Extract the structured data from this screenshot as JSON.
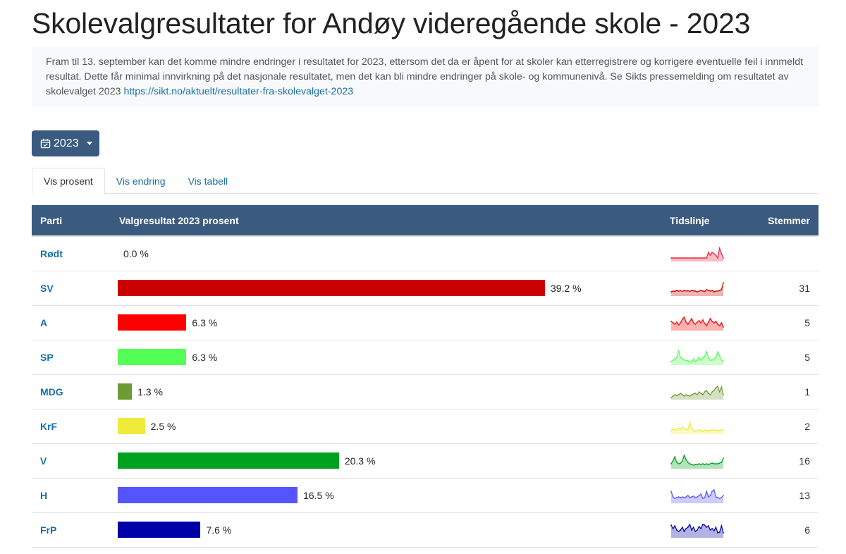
{
  "title": "Skolevalgresultater for Andøy videregående skole - 2023",
  "notice": {
    "text": "Fram til 13. september kan det komme mindre endringer i resultatet for 2023, ettersom det da er åpent for at skoler kan etterregistrere og korrigere eventuelle feil i innmeldt resultat. Dette får minimal innvirkning på det nasjonale resultatet, men det kan bli mindre endringer på skole- og kommunenivå. Se Sikts pressemelding om resultatet av skolevalget 2023 ",
    "link": "https://sikt.no/aktuelt/resultater-fra-skolevalget-2023"
  },
  "year_selector": {
    "label": "2023",
    "icon": "calendar-check-icon"
  },
  "tabs": [
    {
      "label": "Vis prosent",
      "active": true
    },
    {
      "label": "Vis endring",
      "active": false
    },
    {
      "label": "Vis tabell",
      "active": false
    }
  ],
  "table": {
    "headers": {
      "parti": "Parti",
      "result": "Valgresultat 2023 prosent",
      "timeline": "Tidslinje",
      "votes": "Stemmer"
    },
    "max_percent": 39.2,
    "rows": [
      {
        "party": "Rødt",
        "percent": 0.0,
        "label": "0.0 %",
        "color": "#e8253f",
        "votes": "",
        "trend": [
          0.2,
          0.2,
          0.2,
          0.2,
          0.2,
          0.2,
          0.2,
          0.2,
          0.2,
          0.2,
          0.2,
          0.2,
          0.2,
          0.2,
          0.2,
          0.2,
          0.2,
          0.2,
          0.2,
          0.2,
          0.6,
          0.4,
          0.6,
          0.5,
          0.4,
          0.2,
          0.9,
          0.5,
          0.2
        ]
      },
      {
        "party": "SV",
        "percent": 39.2,
        "label": "39.2 %",
        "color": "#cc0000",
        "votes": "31",
        "trend": [
          0.25,
          0.3,
          0.28,
          0.35,
          0.3,
          0.33,
          0.28,
          0.35,
          0.3,
          0.33,
          0.28,
          0.35,
          0.32,
          0.3,
          0.25,
          0.3,
          0.35,
          0.3,
          0.28,
          0.4,
          0.35,
          0.3,
          0.35,
          0.25,
          0.3,
          0.3,
          0.35,
          0.4,
          0.9
        ]
      },
      {
        "party": "A",
        "percent": 6.3,
        "label": "6.3 %",
        "color": "#ff0000",
        "votes": "5",
        "trend": [
          0.6,
          0.5,
          0.4,
          0.55,
          0.35,
          0.5,
          0.75,
          0.9,
          0.55,
          0.4,
          0.6,
          0.8,
          0.5,
          0.4,
          0.55,
          0.65,
          0.5,
          0.7,
          0.45,
          0.3,
          0.55,
          0.8,
          0.6,
          0.5,
          0.6,
          0.4,
          0.3,
          0.5,
          0.2
        ]
      },
      {
        "party": "SP",
        "percent": 6.3,
        "label": "6.3 %",
        "color": "#55ff55",
        "votes": "5",
        "trend": [
          0.2,
          0.3,
          0.4,
          0.5,
          0.95,
          0.5,
          0.4,
          0.3,
          0.3,
          0.25,
          0.2,
          0.15,
          0.4,
          0.2,
          0.3,
          0.5,
          0.3,
          0.5,
          0.55,
          0.9,
          0.5,
          0.3,
          0.3,
          0.4,
          0.5,
          0.9,
          0.6,
          0.3,
          0.2
        ]
      },
      {
        "party": "MDG",
        "percent": 1.3,
        "label": "1.3 %",
        "color": "#6d9b36",
        "votes": "1",
        "trend": [
          0.1,
          0.2,
          0.3,
          0.25,
          0.3,
          0.4,
          0.3,
          0.2,
          0.3,
          0.25,
          0.2,
          0.3,
          0.35,
          0.4,
          0.3,
          0.5,
          0.4,
          0.3,
          0.5,
          0.6,
          0.4,
          0.3,
          0.5,
          0.6,
          0.8,
          0.9,
          0.5,
          0.85,
          0.3
        ]
      },
      {
        "party": "KrF",
        "percent": 2.5,
        "label": "2.5 %",
        "color": "#f0ea3a",
        "votes": "2",
        "trend": [
          0.2,
          0.3,
          0.25,
          0.3,
          0.35,
          0.3,
          0.45,
          0.3,
          0.3,
          0.25,
          0.8,
          0.4,
          0.2,
          0.15,
          0.2,
          0.25,
          0.2,
          0.15,
          0.25,
          0.2,
          0.2,
          0.2,
          0.25,
          0.25,
          0.2,
          0.25,
          0.2,
          0.25,
          0.25
        ]
      },
      {
        "party": "V",
        "percent": 20.3,
        "label": "20.3 %",
        "color": "#00a020",
        "votes": "16",
        "trend": [
          0.3,
          0.5,
          0.8,
          0.4,
          0.3,
          0.35,
          0.5,
          0.9,
          0.6,
          0.4,
          0.3,
          0.25,
          0.2,
          0.25,
          0.25,
          0.3,
          0.25,
          0.3,
          0.25,
          0.3,
          0.25,
          0.3,
          0.35,
          0.3,
          0.3,
          0.3,
          0.35,
          0.4,
          0.7
        ]
      },
      {
        "party": "H",
        "percent": 16.5,
        "label": "16.5 %",
        "color": "#5555ff",
        "votes": "13",
        "trend": [
          0.8,
          0.4,
          0.3,
          0.35,
          0.4,
          0.35,
          0.4,
          0.35,
          0.4,
          0.5,
          0.35,
          0.4,
          0.45,
          0.35,
          0.4,
          0.5,
          0.6,
          0.3,
          0.35,
          0.8,
          0.4,
          0.5,
          0.8,
          0.9,
          0.4,
          0.35,
          0.3,
          0.35,
          0.5
        ]
      },
      {
        "party": "FrP",
        "percent": 7.6,
        "label": "7.6 %",
        "color": "#0000a8",
        "votes": "6",
        "trend": [
          0.85,
          0.6,
          0.8,
          0.5,
          0.4,
          0.5,
          0.7,
          0.4,
          0.6,
          0.7,
          0.9,
          0.5,
          0.7,
          0.4,
          0.5,
          0.75,
          0.6,
          0.9,
          0.85,
          0.7,
          0.8,
          0.5,
          0.6,
          0.45,
          0.7,
          0.3,
          0.35,
          0.8,
          0.3
        ]
      }
    ]
  }
}
